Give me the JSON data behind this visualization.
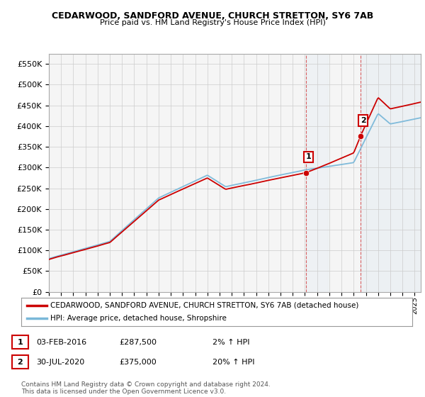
{
  "title": "CEDARWOOD, SANDFORD AVENUE, CHURCH STRETTON, SY6 7AB",
  "subtitle": "Price paid vs. HM Land Registry's House Price Index (HPI)",
  "legend_line1": "CEDARWOOD, SANDFORD AVENUE, CHURCH STRETTON, SY6 7AB (detached house)",
  "legend_line2": "HPI: Average price, detached house, Shropshire",
  "annotation1_label": "1",
  "annotation1_date": "03-FEB-2016",
  "annotation1_price": "£287,500",
  "annotation1_hpi": "2% ↑ HPI",
  "annotation2_label": "2",
  "annotation2_date": "30-JUL-2020",
  "annotation2_price": "£375,000",
  "annotation2_hpi": "20% ↑ HPI",
  "footer": "Contains HM Land Registry data © Crown copyright and database right 2024.\nThis data is licensed under the Open Government Licence v3.0.",
  "sale1_year": 2016.085,
  "sale1_price": 287500,
  "sale2_year": 2020.58,
  "sale2_price": 375000,
  "hpi_color": "#7ab8d9",
  "property_color": "#cc0000",
  "sale_dot_color": "#cc0000",
  "vline_color": "#cc0000",
  "shade_color": "#cce0f0",
  "background_color": "#ffffff",
  "grid_color": "#cccccc",
  "ylim": [
    0,
    575000
  ],
  "xlim_start": 1995,
  "xlim_end": 2025.5
}
